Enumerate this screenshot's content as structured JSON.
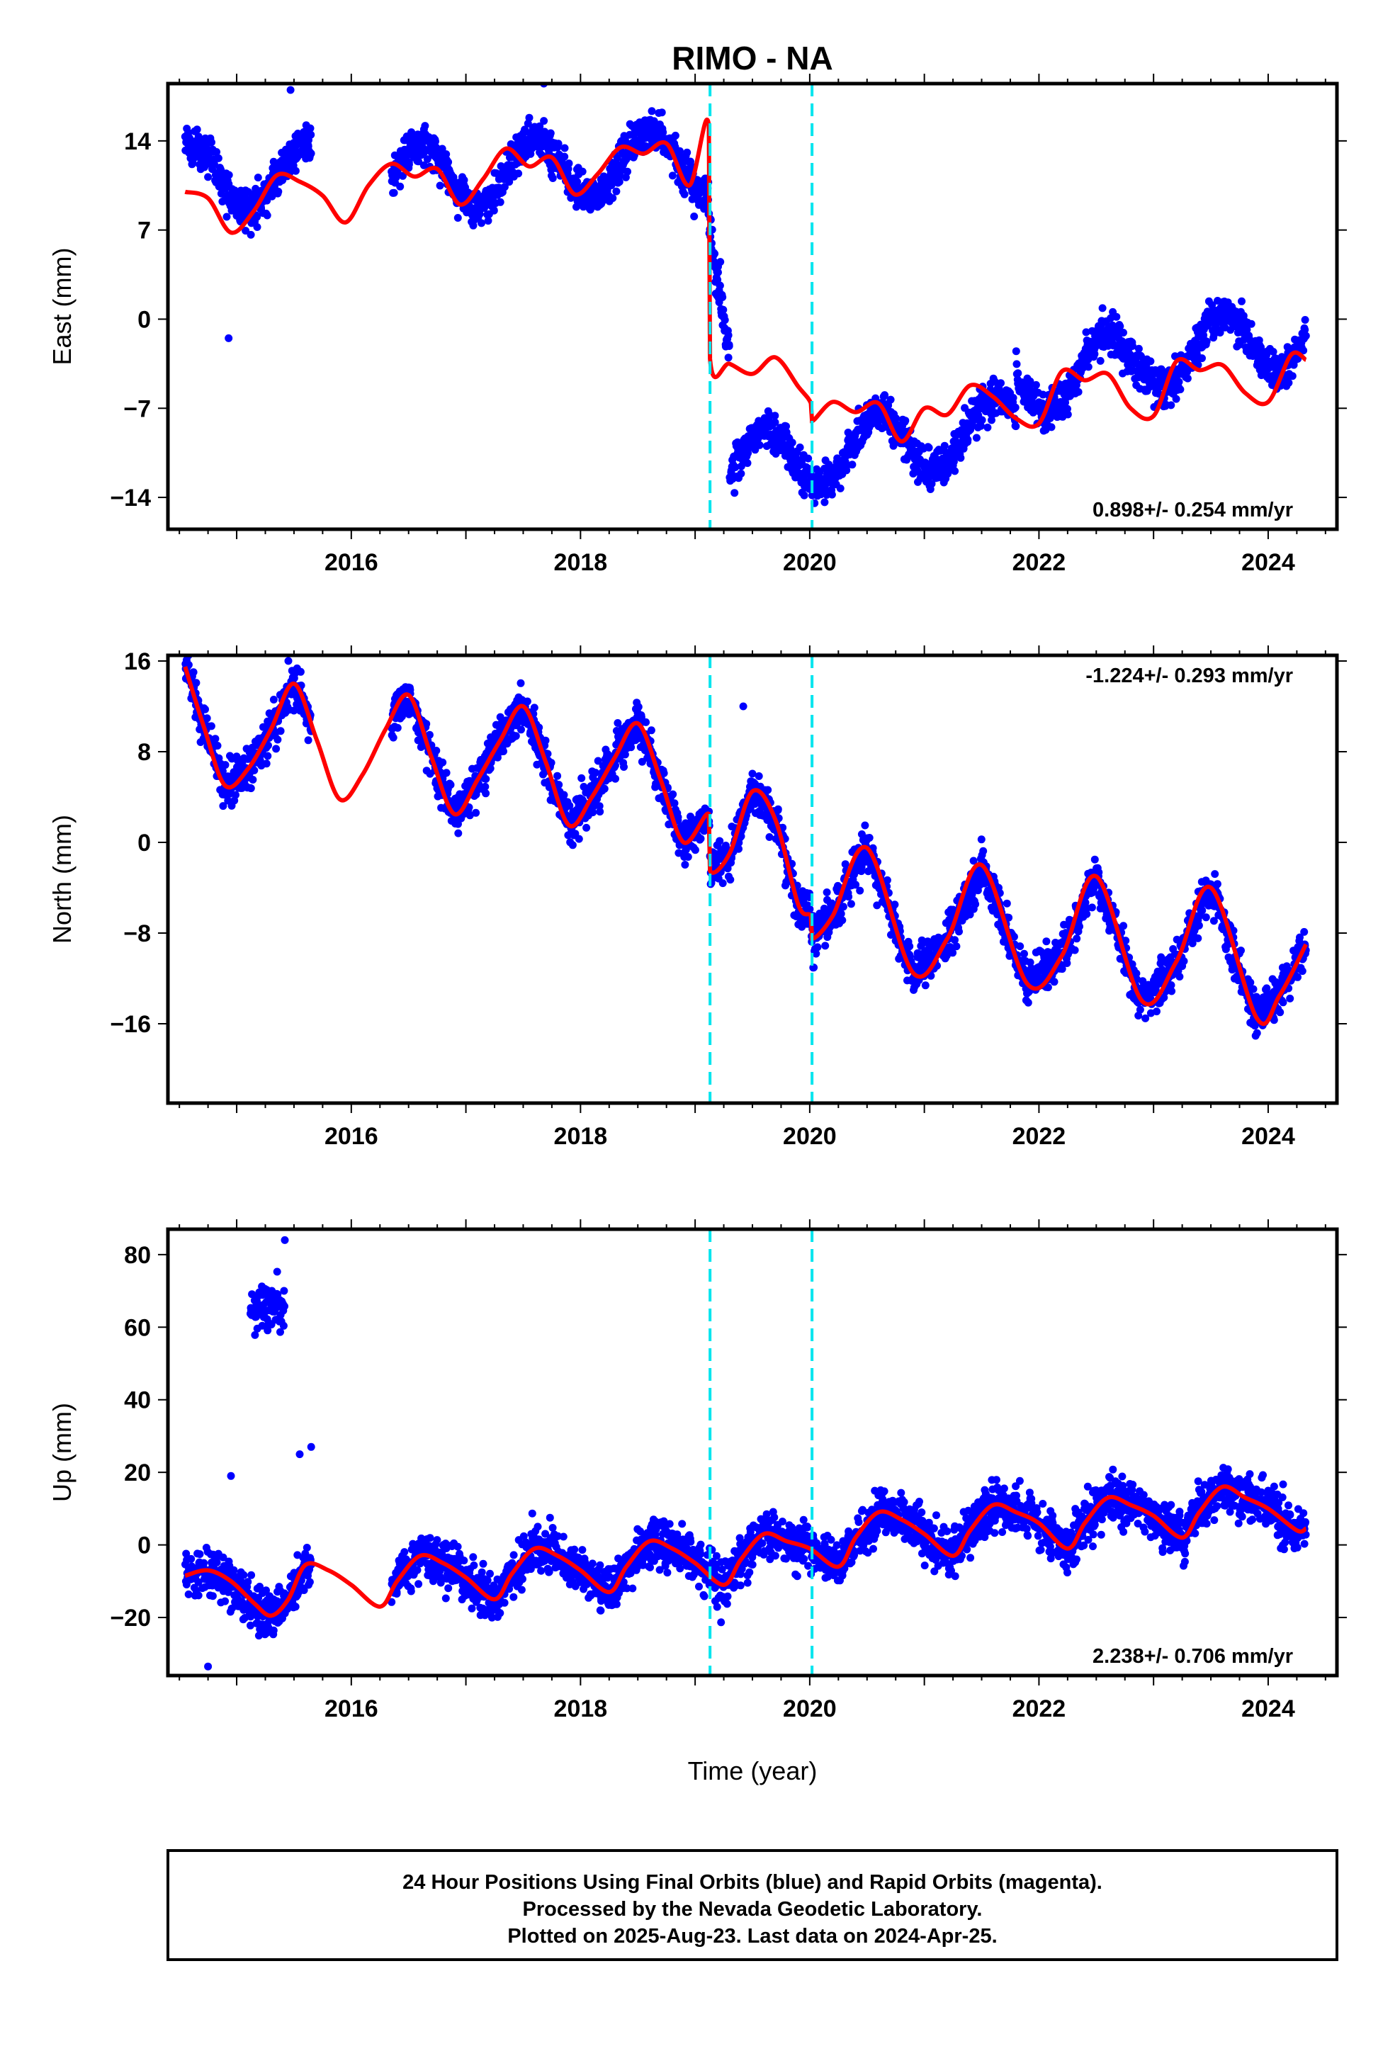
{
  "figure": {
    "title": "RIMO - NA",
    "xlabel": "Time (year)",
    "footer_lines": [
      "24 Hour Positions Using Final Orbits (blue) and Rapid Orbits (magenta).",
      "Processed by the Nevada Geodetic Laboratory.",
      "Plotted on 2025-Aug-23. Last data on 2024-Apr-25."
    ],
    "colors": {
      "observations": "#0000ff",
      "model": "#ff0000",
      "offsets": "#00e5ee",
      "frame": "#000000"
    }
  },
  "chart_data": [
    {
      "type": "scatter",
      "ylabel": "East (mm)",
      "rate_label": "0.898+/- 0.254 mm/yr",
      "rate_position": "bottom-right",
      "xlim": [
        2014.4,
        2024.6
      ],
      "ylim": [
        -16.5,
        18.5
      ],
      "xticks": [
        2016,
        2018,
        2020,
        2022,
        2024
      ],
      "yticks": [
        -14,
        -7,
        0,
        7,
        14
      ],
      "offset_lines": [
        2019.13,
        2020.02
      ],
      "model": {
        "name": "",
        "x": [
          2014.55,
          2014.75,
          2014.95,
          2015.15,
          2015.35,
          2015.55,
          2015.75,
          2015.95,
          2016.15,
          2016.35,
          2016.55,
          2016.75,
          2016.95,
          2017.15,
          2017.35,
          2017.55,
          2017.75,
          2017.95,
          2018.15,
          2018.35,
          2018.55,
          2018.75,
          2018.95,
          2019.12,
          2019.13,
          2019.3,
          2019.5,
          2019.7,
          2019.9,
          2020.01,
          2020.02,
          2020.2,
          2020.4,
          2020.6,
          2020.8,
          2021.0,
          2021.2,
          2021.4,
          2021.6,
          2021.8,
          2022.0,
          2022.2,
          2022.4,
          2022.6,
          2022.8,
          2023.0,
          2023.2,
          2023.4,
          2023.6,
          2023.8,
          2024.0,
          2024.2,
          2024.33
        ],
        "y": [
          10.0,
          9.5,
          6.8,
          8.5,
          11.3,
          10.8,
          9.7,
          7.6,
          10.5,
          12.2,
          11.2,
          11.8,
          9.0,
          11.0,
          13.4,
          12.0,
          12.7,
          9.8,
          11.4,
          13.5,
          13.0,
          13.8,
          10.5,
          15.2,
          -3.1,
          -3.5,
          -4.3,
          -3.0,
          -5.3,
          -6.6,
          -8.0,
          -6.5,
          -7.3,
          -6.6,
          -9.6,
          -7.0,
          -7.5,
          -5.2,
          -6.1,
          -7.8,
          -8.2,
          -4.1,
          -4.8,
          -4.3,
          -7.0,
          -7.6,
          -3.3,
          -4.0,
          -3.6,
          -5.8,
          -6.5,
          -2.8,
          -3.2
        ]
      },
      "observations": {
        "name": "",
        "seasonal_amplitude": 2.5,
        "scatter_sd": 1.3,
        "segments": [
          {
            "x": [
              2014.55,
              2015.65
            ],
            "trend": [
              11.2,
              11.2
            ]
          },
          {
            "x": [
              2016.35,
              2019.12
            ],
            "trend": [
              11.0,
              12.5
            ]
          },
          {
            "x": [
              2019.12,
              2019.3
            ],
            "trend": [
              10.0,
              -2.0
            ]
          },
          {
            "x": [
              2019.3,
              2021.8
            ],
            "trend": [
              -11.5,
              -8.5
            ]
          },
          {
            "x": [
              2021.8,
              2024.33
            ],
            "trend": [
              -5.0,
              -1.0
            ]
          }
        ],
        "outliers": [
          [
            2014.93,
            -1.5
          ],
          [
            2019.18,
            2.0
          ],
          [
            2019.22,
            4.5
          ],
          [
            2015.47,
            18.0
          ],
          [
            2017.68,
            18.5
          ]
        ]
      }
    },
    {
      "type": "scatter",
      "ylabel": "North (mm)",
      "rate_label": "-1.224+/- 0.293 mm/yr",
      "rate_position": "top-right",
      "xlim": [
        2014.4,
        2024.6
      ],
      "ylim": [
        -23,
        16.5
      ],
      "xticks": [
        2016,
        2018,
        2020,
        2022,
        2024
      ],
      "yticks": [
        -16,
        -8,
        0,
        8,
        16
      ],
      "offset_lines": [
        2019.13,
        2020.02
      ],
      "model": {
        "name": "",
        "x": [
          2014.55,
          2014.72,
          2014.9,
          2015.1,
          2015.3,
          2015.5,
          2015.7,
          2015.9,
          2016.1,
          2016.3,
          2016.5,
          2016.7,
          2016.9,
          2017.1,
          2017.3,
          2017.5,
          2017.7,
          2017.9,
          2018.1,
          2018.3,
          2018.5,
          2018.7,
          2018.9,
          2019.12,
          2019.13,
          2019.3,
          2019.5,
          2019.7,
          2019.9,
          2020.01,
          2020.02,
          2020.2,
          2020.5,
          2020.9,
          2021.2,
          2021.5,
          2021.9,
          2022.2,
          2022.5,
          2022.9,
          2023.2,
          2023.5,
          2023.9,
          2024.1,
          2024.33
        ],
        "y": [
          15.5,
          10.0,
          5.0,
          6.5,
          10.0,
          14.0,
          9.0,
          3.8,
          6.0,
          10.0,
          13.0,
          7.5,
          2.5,
          5.5,
          9.0,
          12.0,
          7.0,
          1.5,
          4.0,
          7.5,
          10.5,
          5.5,
          0.0,
          2.5,
          -2.5,
          -1.0,
          4.5,
          2.0,
          -5.5,
          -6.5,
          -8.5,
          -6.5,
          -0.5,
          -11.5,
          -8.5,
          -2.0,
          -12.5,
          -10.0,
          -3.0,
          -14.0,
          -10.5,
          -4.0,
          -15.5,
          -13.5,
          -9.0
        ]
      },
      "observations": {
        "name": "",
        "seasonal_amplitude": 0.0,
        "scatter_sd": 1.6,
        "segments": [
          {
            "x": [
              2014.55,
              2015.65
            ],
            "trend": [
              0,
              0
            ]
          },
          {
            "x": [
              2016.35,
              2024.33
            ],
            "trend": [
              0,
              0
            ]
          }
        ],
        "outliers": [
          [
            2019.42,
            12.0
          ],
          [
            2014.58,
            16.5
          ]
        ]
      }
    },
    {
      "type": "scatter",
      "ylabel": "Up (mm)",
      "rate_label": "2.238+/- 0.706 mm/yr",
      "rate_position": "bottom-right",
      "xlim": [
        2014.4,
        2024.6
      ],
      "ylim": [
        -36,
        87
      ],
      "xticks": [
        2016,
        2018,
        2020,
        2022,
        2024
      ],
      "yticks": [
        -20,
        0,
        20,
        40,
        60,
        80
      ],
      "offset_lines": [
        2019.13,
        2020.02
      ],
      "model": {
        "name": "",
        "x": [
          2014.55,
          2014.75,
          2014.95,
          2015.15,
          2015.3,
          2015.45,
          2015.6,
          2015.8,
          2016.0,
          2016.25,
          2016.4,
          2016.6,
          2016.8,
          2017.0,
          2017.25,
          2017.4,
          2017.6,
          2017.8,
          2018.0,
          2018.25,
          2018.4,
          2018.6,
          2018.8,
          2019.0,
          2019.25,
          2019.4,
          2019.6,
          2019.8,
          2020.0,
          2020.25,
          2020.4,
          2020.6,
          2020.8,
          2021.0,
          2021.25,
          2021.4,
          2021.6,
          2021.8,
          2022.0,
          2022.25,
          2022.4,
          2022.6,
          2022.8,
          2023.0,
          2023.25,
          2023.4,
          2023.6,
          2023.8,
          2024.0,
          2024.25,
          2024.33
        ],
        "y": [
          -8.5,
          -7.0,
          -10.0,
          -16.0,
          -19.5,
          -15.0,
          -5.5,
          -7.0,
          -11.0,
          -17.0,
          -10.0,
          -3.0,
          -5.0,
          -9.0,
          -15.0,
          -8.0,
          -1.0,
          -3.0,
          -7.0,
          -13.0,
          -6.0,
          1.0,
          -1.0,
          -5.0,
          -11.0,
          -4.0,
          3.0,
          1.0,
          -1.0,
          -6.0,
          2.0,
          9.0,
          7.0,
          3.0,
          -3.0,
          4.0,
          11.0,
          9.0,
          6.0,
          -1.0,
          6.0,
          13.0,
          11.0,
          8.0,
          2.0,
          9.0,
          16.0,
          13.0,
          10.0,
          4.0,
          4.5
        ]
      },
      "observations": {
        "name": "",
        "seasonal_amplitude": 0.0,
        "scatter_sd": 5.5,
        "segments": [
          {
            "x": [
              2014.55,
              2015.65
            ],
            "trend": [
              0,
              0
            ]
          },
          {
            "x": [
              2016.35,
              2024.33
            ],
            "trend": [
              0,
              0
            ]
          }
        ],
        "clusters": [
          {
            "x": [
              2015.12,
              2015.42
            ],
            "y_center": 65,
            "y_sd": 6.0
          }
        ],
        "outliers": [
          [
            2014.75,
            -33.5
          ],
          [
            2015.42,
            84.0
          ],
          [
            2015.55,
            25.0
          ],
          [
            2015.65,
            27.0
          ],
          [
            2014.95,
            19.0
          ]
        ]
      }
    }
  ]
}
